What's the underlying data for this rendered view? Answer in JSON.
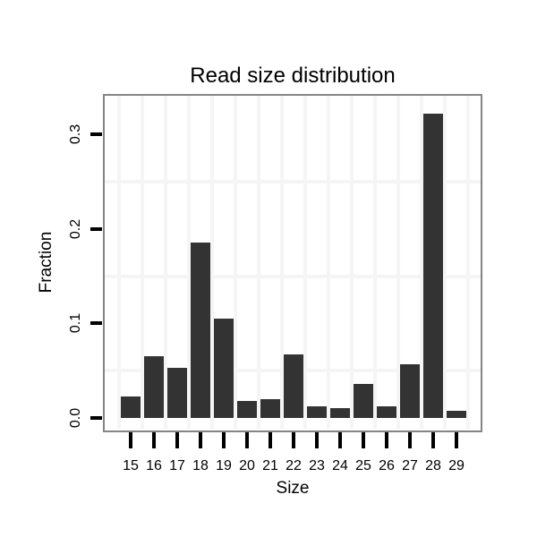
{
  "figure": {
    "background": "#ffffff"
  },
  "chart_data": {
    "type": "bar",
    "title": "Read size distribution",
    "xlabel": "Size",
    "ylabel": "Fraction",
    "categories": [
      15,
      16,
      17,
      18,
      19,
      20,
      21,
      22,
      23,
      24,
      25,
      26,
      27,
      28,
      29
    ],
    "values": [
      0.023,
      0.065,
      0.053,
      0.186,
      0.105,
      0.018,
      0.02,
      0.067,
      0.012,
      0.01,
      0.036,
      0.012,
      0.057,
      0.322,
      0.008
    ],
    "y_ticks": [
      0.0,
      0.1,
      0.2,
      0.3
    ],
    "y_tick_labels": [
      "0.0",
      "0.1",
      "0.2",
      "0.3"
    ],
    "x_tick_labels": [
      "15",
      "16",
      "17",
      "18",
      "19",
      "20",
      "21",
      "22",
      "23",
      "24",
      "25",
      "26",
      "27",
      "28",
      "29"
    ],
    "ylim": [
      -0.011,
      0.34
    ],
    "bar_color": "#333333",
    "axis_tick_color": "#000000",
    "panel_border_color": "#858585",
    "grid": {
      "color": "#f5f5f5",
      "h_lines_at_values": [
        0.05,
        0.15,
        0.25
      ],
      "v_lines": "category-boundaries"
    },
    "legend": "none"
  }
}
